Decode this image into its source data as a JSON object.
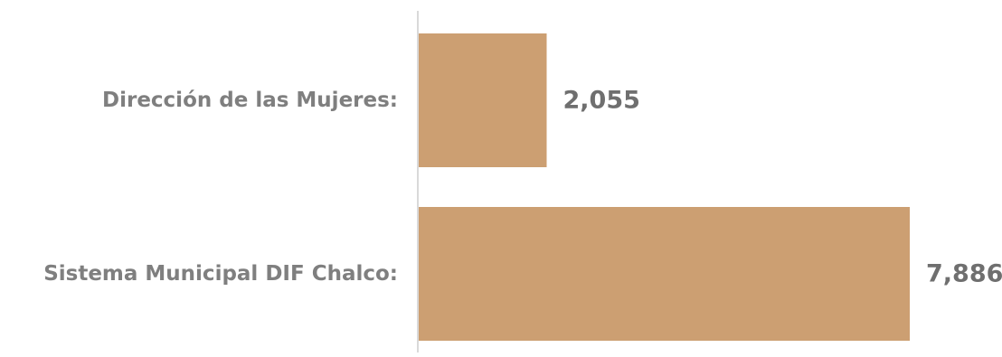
{
  "chart_data": {
    "type": "bar",
    "orientation": "horizontal",
    "categories": [
      "Dirección de las Mujeres:",
      "Sistema Municipal DIF Chalco:"
    ],
    "values": [
      2055,
      7886
    ],
    "value_labels": [
      "2,055",
      "7,886"
    ],
    "title": "",
    "xlabel": "",
    "ylabel": "",
    "xlim": [
      0,
      8000
    ],
    "grid": false,
    "legend": "none",
    "colors": {
      "bar": "#cc9f72",
      "axis": "#d9d9d9",
      "category_text": "#7f7f7f",
      "value_text": "#6f6f6f"
    }
  }
}
